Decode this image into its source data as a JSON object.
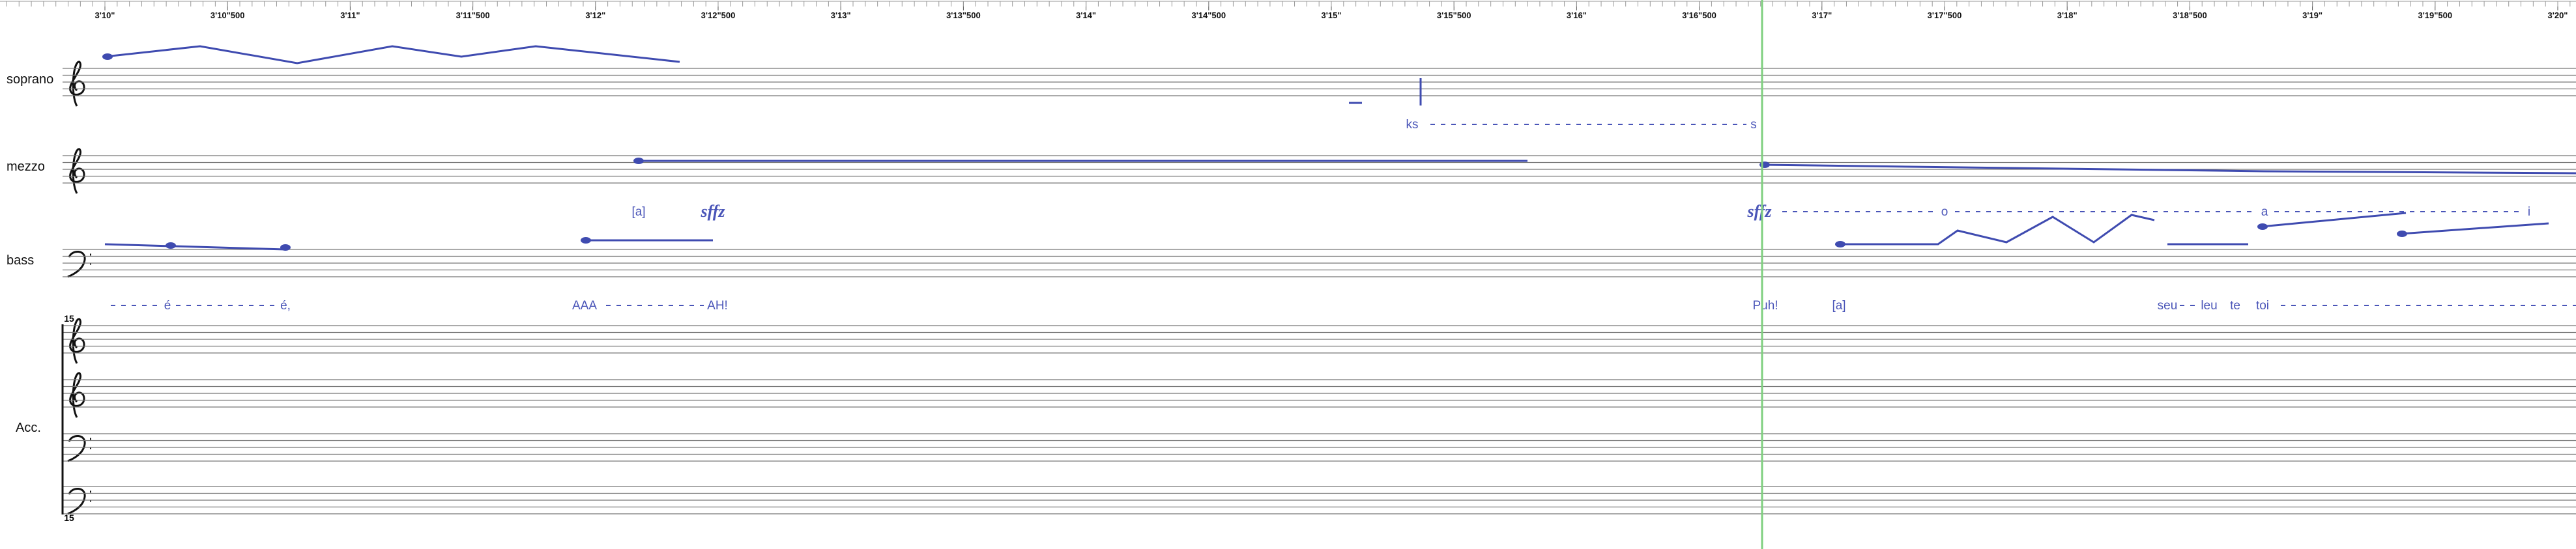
{
  "ruler": {
    "labels": [
      "3'10\"",
      "3'10\"500",
      "3'11\"",
      "3'11\"500",
      "3'12\"",
      "3'12\"500",
      "3'13\"",
      "3'13\"500",
      "3'14\"",
      "3'14\"500",
      "3'15\"",
      "3'15\"500",
      "3'16\"",
      "3'16\"500",
      "3'17\"",
      "3'17\"500",
      "3'18\"",
      "3'18\"500",
      "3'19\"",
      "3'19\"500",
      "3'20\""
    ]
  },
  "staves": [
    {
      "name": "soprano"
    },
    {
      "name": "mezzo"
    },
    {
      "name": "bass"
    },
    {
      "name": "Acc."
    }
  ],
  "acc_markings": [
    "15",
    "15"
  ],
  "lyrics": {
    "soprano": [
      "ks",
      "s"
    ],
    "mezzo": [
      "[a]",
      "sffz",
      "sffz",
      "o",
      "a",
      "i"
    ],
    "bass": [
      "é",
      "é,",
      "AAA",
      "AH!",
      "Puh!",
      "[a]",
      "seu",
      "leu",
      "te",
      "toi"
    ]
  }
}
